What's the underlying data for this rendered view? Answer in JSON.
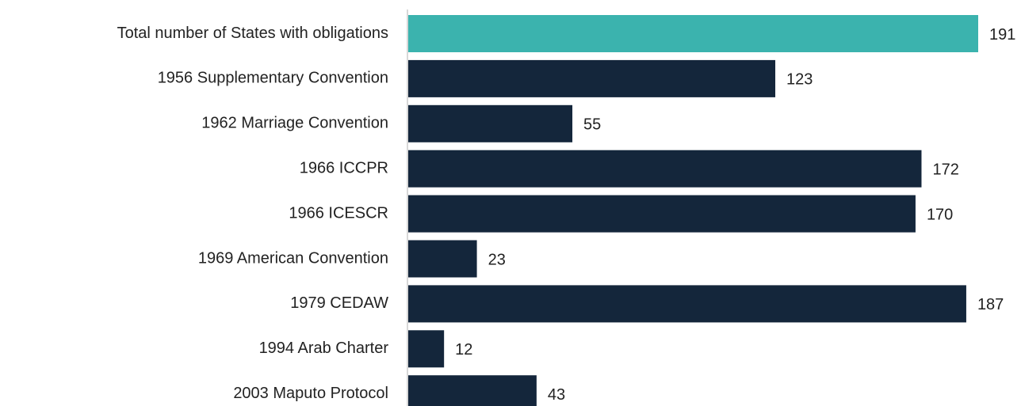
{
  "chart_data": {
    "type": "hbar",
    "categories": [
      "Total number of States with obligations",
      "1956 Supplementary Convention",
      "1962 Marriage Convention",
      "1966 ICCPR",
      "1966 ICESCR",
      "1969 American Convention",
      "1979 CEDAW",
      "1994 Arab Charter",
      "2003 Maputo Protocol"
    ],
    "values": [
      191,
      123,
      55,
      172,
      170,
      23,
      187,
      12,
      43
    ],
    "colors": [
      "#3bb3ae",
      "#14263b",
      "#14263b",
      "#14263b",
      "#14263b",
      "#14263b",
      "#14263b",
      "#14263b",
      "#14263b"
    ]
  }
}
